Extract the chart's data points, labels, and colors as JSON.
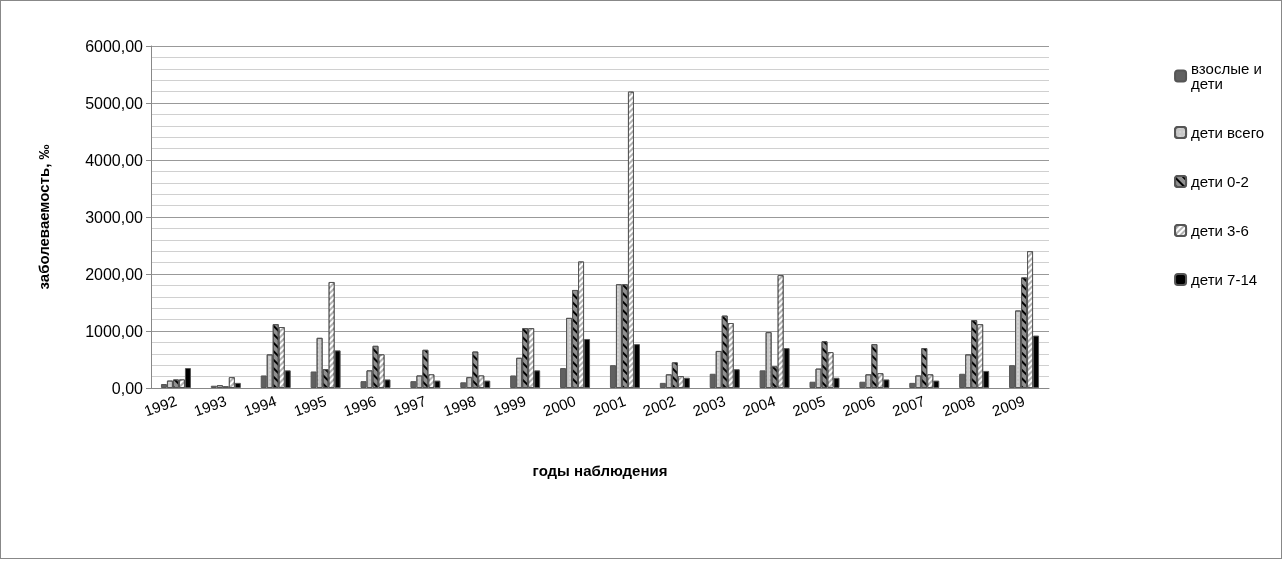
{
  "chart_data": {
    "type": "bar",
    "xlabel": "годы наблюдения",
    "ylabel": "заболеваемость, ‰",
    "categories": [
      "1992",
      "1993",
      "1994",
      "1995",
      "1996",
      "1997",
      "1998",
      "1999",
      "2000",
      "2001",
      "2002",
      "2003",
      "2004",
      "2005",
      "2006",
      "2007",
      "2008",
      "2009"
    ],
    "series": [
      {
        "name": "взослые и дети",
        "color": "#606060",
        "values": [
          70,
          40,
          220,
          290,
          120,
          120,
          100,
          220,
          350,
          400,
          90,
          250,
          310,
          110,
          110,
          90,
          250,
          400
        ]
      },
      {
        "name": "дети всего",
        "color": "#c8c8c8",
        "values": [
          130,
          50,
          590,
          880,
          310,
          220,
          190,
          530,
          1230,
          1820,
          240,
          650,
          980,
          340,
          240,
          220,
          590,
          1360
        ]
      },
      {
        "name": "дети 0-2",
        "color": "#909090",
        "values": [
          150,
          30,
          1120,
          330,
          740,
          670,
          640,
          1050,
          1720,
          1820,
          450,
          1270,
          380,
          820,
          770,
          700,
          1190,
          1940
        ]
      },
      {
        "name": "дети 3-6",
        "color": "#b4b4b4",
        "values": [
          150,
          190,
          1070,
          1860,
          590,
          240,
          220,
          1050,
          2220,
          5200,
          210,
          1140,
          1980,
          630,
          260,
          240,
          1120,
          2400
        ]
      },
      {
        "name": "дети 7-14",
        "color": "#000000",
        "values": [
          350,
          90,
          310,
          660,
          150,
          130,
          130,
          310,
          860,
          770,
          180,
          330,
          700,
          180,
          150,
          130,
          300,
          920
        ]
      }
    ],
    "ylim": [
      0,
      6000
    ],
    "yticks": [
      {
        "value": 0,
        "label": "0,00"
      },
      {
        "value": 1000,
        "label": "1000,00"
      },
      {
        "value": 2000,
        "label": "2000,00"
      },
      {
        "value": 3000,
        "label": "3000,00"
      },
      {
        "value": 4000,
        "label": "4000,00"
      },
      {
        "value": 5000,
        "label": "5000,00"
      },
      {
        "value": 6000,
        "label": "6000,00"
      }
    ],
    "grid": true,
    "legend": "right"
  }
}
